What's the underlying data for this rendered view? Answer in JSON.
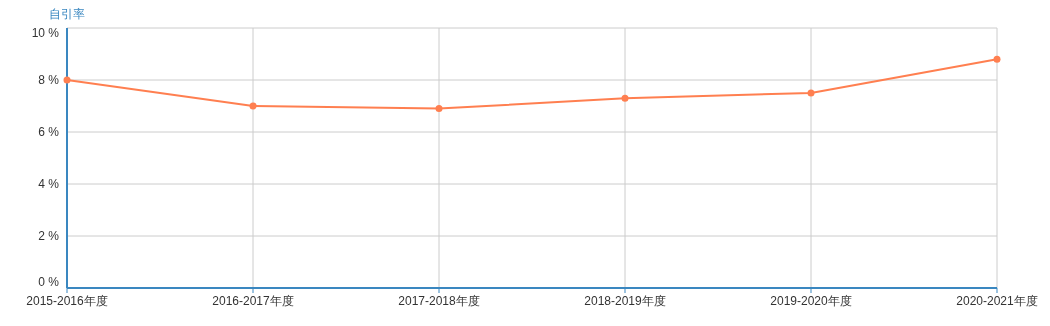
{
  "chart_data": {
    "type": "line",
    "ylabel": "自引率",
    "categories": [
      "2015-2016年度",
      "2016-2017年度",
      "2017-2018年度",
      "2018-2019年度",
      "2019-2020年度",
      "2020-2021年度"
    ],
    "series": [
      {
        "color": "#ff7f50",
        "values": [
          8.0,
          7.0,
          6.9,
          7.3,
          7.5,
          8.8
        ]
      }
    ],
    "ylim": [
      0,
      10
    ],
    "yticks": [
      {
        "value": 0,
        "label": "0 %"
      },
      {
        "value": 2,
        "label": "2 %"
      },
      {
        "value": 4,
        "label": "4 %"
      },
      {
        "value": 6,
        "label": "6 %"
      },
      {
        "value": 8,
        "label": "8 %"
      },
      {
        "value": 10,
        "label": "10 %"
      }
    ],
    "grid": true,
    "marker": "circle",
    "line_style": "solid"
  }
}
